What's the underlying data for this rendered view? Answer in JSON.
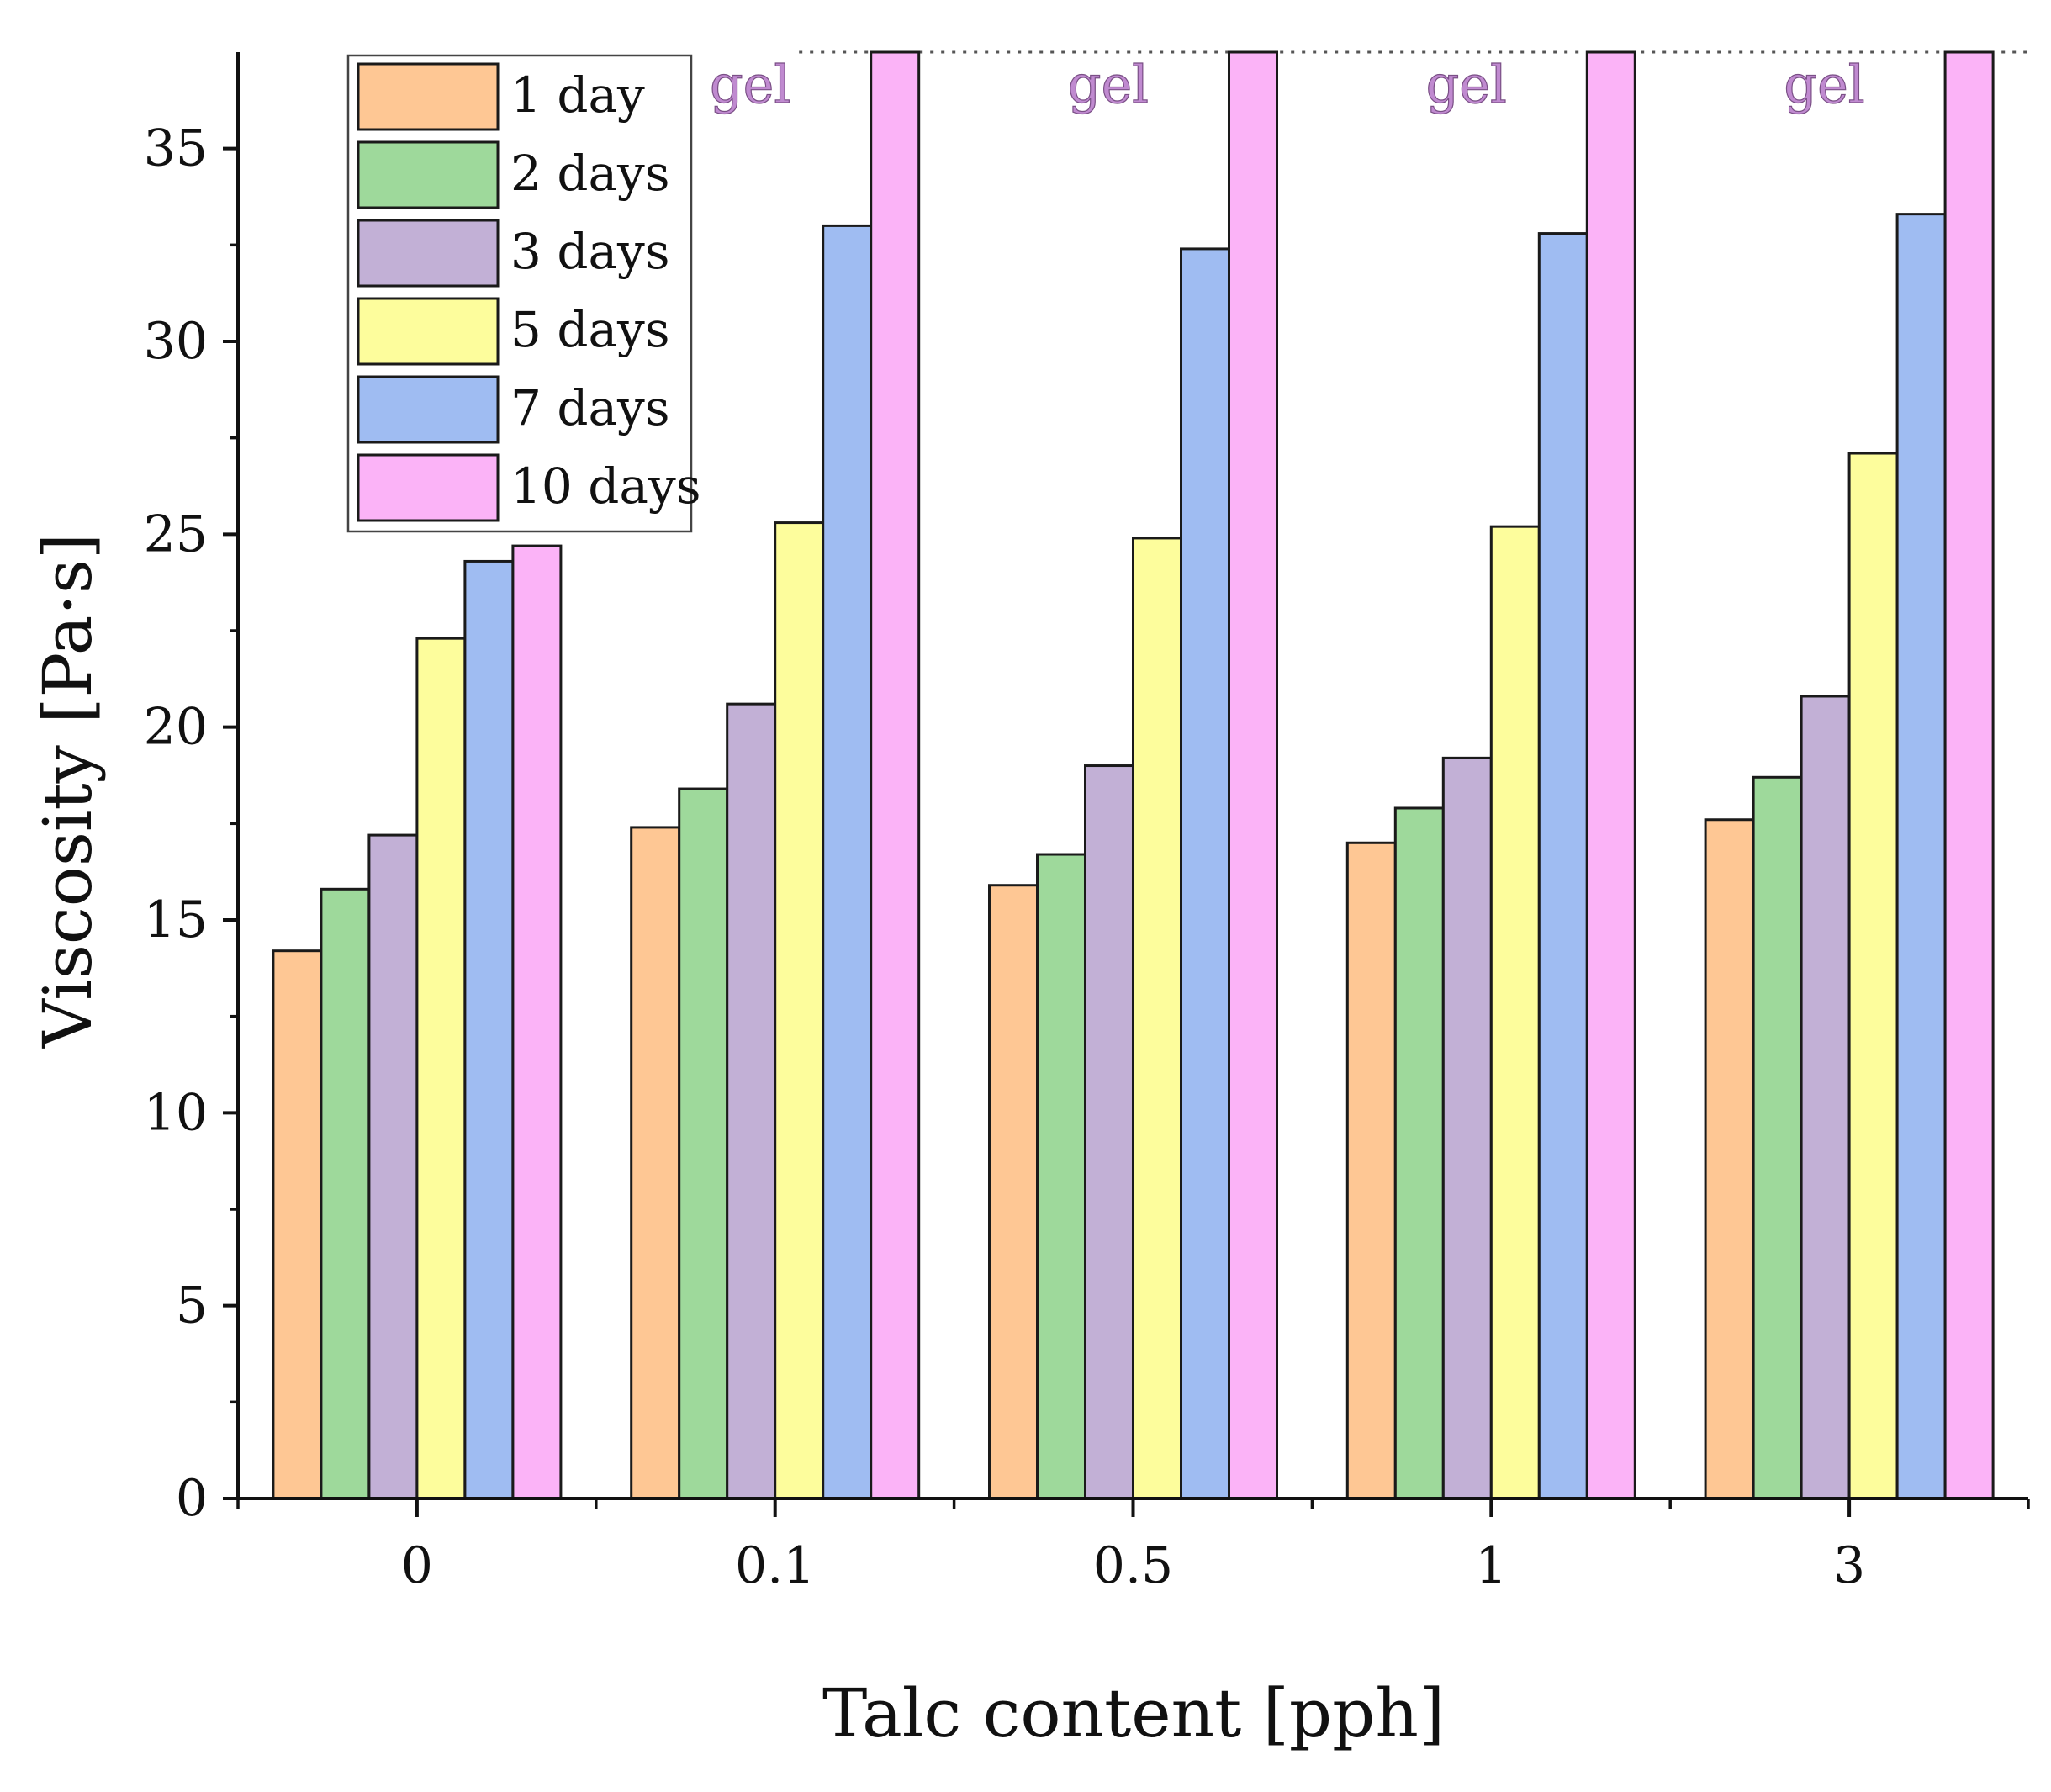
{
  "chart_data": {
    "type": "bar",
    "xlabel": "Talc content [pph]",
    "ylabel": "Viscosity [Pa·s]",
    "categories": [
      "0",
      "0.1",
      "0.5",
      "1",
      "3"
    ],
    "ylim": [
      0,
      37.5
    ],
    "yticks": [
      "0",
      "5",
      "10",
      "15",
      "20",
      "25",
      "30",
      "35"
    ],
    "y_minor_step": 2.5,
    "series": [
      {
        "name": "1 day",
        "color": "#fec794",
        "values": [
          14.2,
          17.4,
          15.9,
          17.0,
          17.6
        ]
      },
      {
        "name": "2 days",
        "color": "#9ed99b",
        "values": [
          15.8,
          18.4,
          16.7,
          17.9,
          18.7
        ]
      },
      {
        "name": "3 days",
        "color": "#c2b0d6",
        "values": [
          17.2,
          20.6,
          19.0,
          19.2,
          20.8
        ]
      },
      {
        "name": "5 days",
        "color": "#fdfd9c",
        "values": [
          22.3,
          25.3,
          24.9,
          25.2,
          27.1
        ]
      },
      {
        "name": "7 days",
        "color": "#9fbcf2",
        "values": [
          24.3,
          33.0,
          32.4,
          32.8,
          33.3
        ]
      },
      {
        "name": "10 days",
        "color": "#fbb3f7",
        "values": [
          24.7,
          37.5,
          37.5,
          37.5,
          37.5
        ]
      }
    ],
    "annotations": [
      {
        "text": "gel",
        "category": "0.1"
      },
      {
        "text": "gel",
        "category": "0.5"
      },
      {
        "text": "gel",
        "category": "1"
      },
      {
        "text": "gel",
        "category": "3"
      }
    ],
    "gel_line": {
      "y": 37.5,
      "style": "dotted"
    },
    "legend_position": "top-left"
  }
}
